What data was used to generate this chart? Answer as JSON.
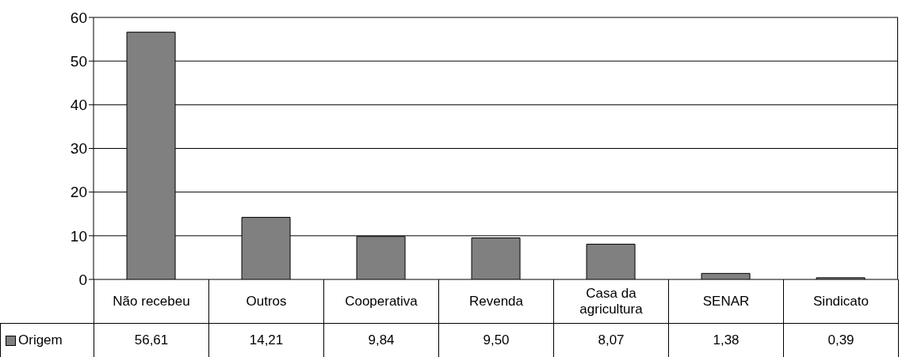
{
  "chart_data": {
    "type": "bar",
    "categories": [
      "Não recebeu",
      "Outros",
      "Cooperativa",
      "Revenda",
      "Casa da agricultura",
      "SENAR",
      "Sindicato"
    ],
    "series": [
      {
        "name": "Origem",
        "color": "#808080",
        "values": [
          56.61,
          14.21,
          9.84,
          9.5,
          8.07,
          1.38,
          0.39
        ],
        "value_labels": [
          "56,61",
          "14,21",
          "9,84",
          "9,50",
          "8,07",
          "1,38",
          "0,39"
        ]
      }
    ],
    "ylim": [
      0,
      60
    ],
    "yticks": [
      0,
      10,
      20,
      30,
      40,
      50,
      60
    ],
    "grid": "y",
    "legend": "bottom left"
  }
}
